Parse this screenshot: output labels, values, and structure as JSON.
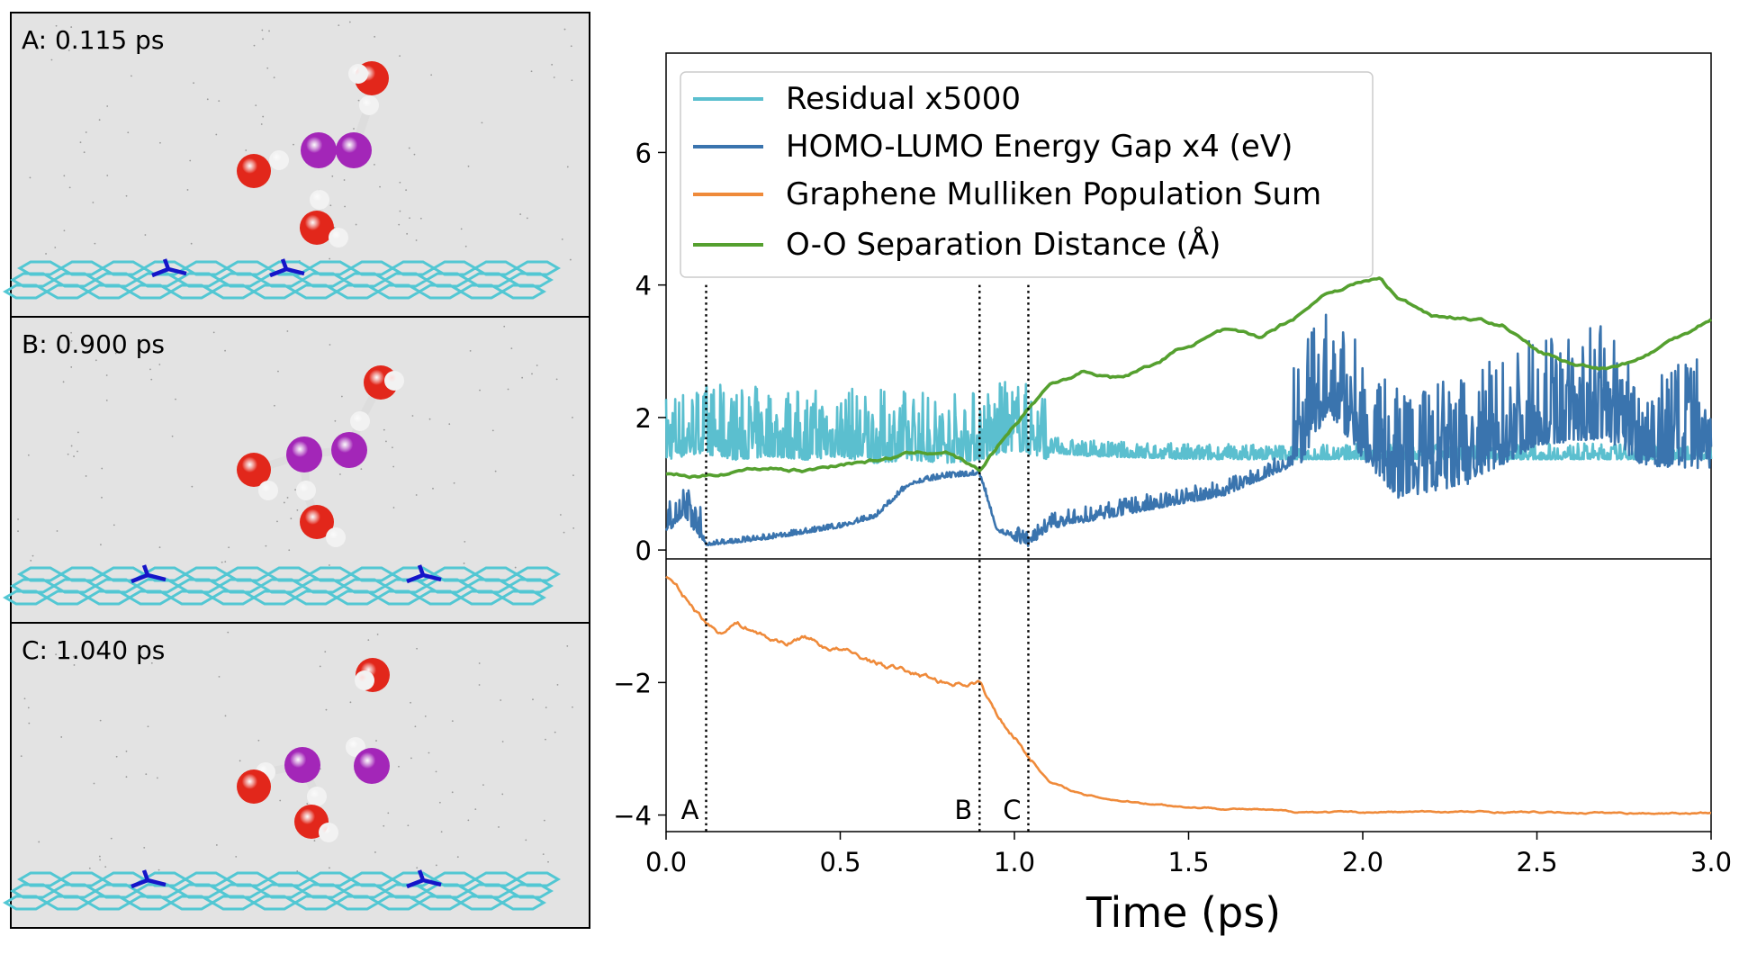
{
  "panels": [
    {
      "label": "A: 0.115 ps"
    },
    {
      "label": "B: 0.900 ps"
    },
    {
      "label": "C: 1.040 ps"
    }
  ],
  "colors": {
    "residual": "#5bbfcf",
    "gap": "#3a74ae",
    "mulliken": "#ef8a3a",
    "oo": "#55a02f",
    "oxygen": "#e2271b",
    "iodine": "#a326b8",
    "hydrogen": "#f2f2f2",
    "graphene": "#52c7d3",
    "nitrogen": "#1515c9",
    "panel_bg": "#e3e3e3"
  },
  "chart_data": {
    "type": "line",
    "xlabel": "Time (ps)",
    "xlim": [
      0,
      3.0
    ],
    "ylim": [
      -4.25,
      7.5
    ],
    "x_ticks": [
      "0.0",
      "0.5",
      "1.0",
      "1.5",
      "2.0",
      "2.5",
      "3.0"
    ],
    "y_ticks": [
      "−4",
      "−2",
      "0",
      "2",
      "4",
      "6"
    ],
    "legend_location": "upper-left",
    "series": [
      {
        "name": "Residual x5000",
        "key": "residual",
        "x": [
          0,
          0.1,
          0.2,
          0.3,
          0.4,
          0.5,
          0.6,
          0.7,
          0.8,
          0.9,
          1.0,
          1.1,
          1.2,
          1.5,
          2.0,
          2.5,
          3.0
        ],
        "y": [
          1.5,
          1.6,
          1.5,
          1.55,
          1.5,
          1.55,
          1.45,
          1.5,
          1.45,
          1.5,
          1.65,
          1.5,
          1.45,
          1.4,
          1.4,
          1.4,
          1.4
        ]
      },
      {
        "name": "HOMO-LUMO Energy Gap x4 (eV)",
        "key": "gap",
        "x": [
          0,
          0.05,
          0.1,
          0.115,
          0.2,
          0.3,
          0.5,
          0.6,
          0.7,
          0.8,
          0.9,
          0.95,
          1.04,
          1.1,
          1.2,
          1.4,
          1.6,
          1.8,
          1.9,
          2.0,
          2.1,
          2.3,
          2.5,
          2.7,
          2.8,
          3.0
        ],
        "y": [
          0.3,
          0.6,
          0.2,
          0.08,
          0.12,
          0.18,
          0.35,
          0.5,
          1.0,
          1.1,
          1.15,
          0.3,
          0.08,
          0.35,
          0.45,
          0.65,
          0.85,
          1.3,
          2.3,
          1.6,
          1.0,
          1.2,
          1.8,
          1.9,
          1.5,
          1.4
        ]
      },
      {
        "name": "Graphene Mulliken Population Sum",
        "key": "mulliken",
        "x": [
          0,
          0.05,
          0.1,
          0.15,
          0.2,
          0.25,
          0.3,
          0.35,
          0.4,
          0.45,
          0.5,
          0.55,
          0.6,
          0.7,
          0.8,
          0.9,
          0.95,
          1.0,
          1.04,
          1.1,
          1.2,
          1.3,
          1.4,
          1.5,
          1.6,
          1.7,
          1.8,
          2.0,
          2.2,
          2.5,
          2.8,
          3.0
        ],
        "y": [
          -0.4,
          -0.7,
          -1.0,
          -1.25,
          -1.1,
          -1.2,
          -1.35,
          -1.4,
          -1.3,
          -1.45,
          -1.5,
          -1.6,
          -1.7,
          -1.85,
          -2.0,
          -2.0,
          -2.5,
          -2.8,
          -3.1,
          -3.5,
          -3.7,
          -3.78,
          -3.83,
          -3.88,
          -3.9,
          -3.92,
          -3.95,
          -3.96,
          -3.95,
          -3.96,
          -3.97,
          -3.97
        ]
      },
      {
        "name": "O-O Separation Distance (Å)",
        "key": "oo",
        "x": [
          0,
          0.1,
          0.2,
          0.3,
          0.4,
          0.5,
          0.6,
          0.7,
          0.8,
          0.9,
          1.0,
          1.1,
          1.2,
          1.3,
          1.4,
          1.5,
          1.6,
          1.7,
          1.8,
          1.9,
          2.0,
          2.05,
          2.1,
          2.2,
          2.3,
          2.4,
          2.5,
          2.6,
          2.7,
          2.8,
          2.9,
          3.0
        ],
        "y": [
          1.15,
          1.1,
          1.2,
          1.25,
          1.2,
          1.3,
          1.35,
          1.45,
          1.5,
          1.2,
          1.9,
          2.5,
          2.7,
          2.6,
          2.8,
          3.1,
          3.3,
          3.2,
          3.5,
          3.9,
          4.05,
          4.1,
          3.8,
          3.55,
          3.5,
          3.4,
          3.0,
          2.8,
          2.75,
          2.9,
          3.2,
          3.5
        ]
      }
    ],
    "markers": [
      {
        "label": "A",
        "x": 0.115
      },
      {
        "label": "B",
        "x": 0.9
      },
      {
        "label": "C",
        "x": 1.04
      }
    ]
  }
}
